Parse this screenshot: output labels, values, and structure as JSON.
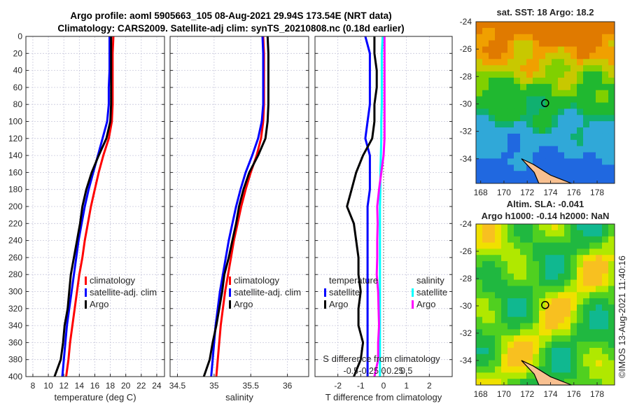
{
  "title": {
    "line1": "Argo profile: aoml 5905663_105 08-Aug-2021 29.94S 173.54E (NRT data)",
    "line2": "Climatology: CARS2009. Satellite-adj clim: synTS_20210808.nc (0.18d earlier)"
  },
  "watermark": "©IMOS 13-Aug-2021 11:40:16",
  "colors": {
    "climatology": "#ff0000",
    "satellite": "#0000ff",
    "argo": "#000000",
    "sal_satellite": "#00ffff",
    "sal_argo": "#ff00ff"
  },
  "chart_data": [
    {
      "type": "line",
      "id": "temp",
      "xlabel": "temperature (deg C)",
      "ylabel": "",
      "xlim": [
        7.1,
        25
      ],
      "ylim": [
        400,
        0
      ],
      "xticks": [
        "8",
        "10",
        "12",
        "14",
        "16",
        "18",
        "20",
        "22",
        "24"
      ],
      "xtickvals": [
        8,
        10,
        12,
        14,
        16,
        18,
        20,
        22,
        24
      ],
      "yticks": [
        0,
        20,
        40,
        60,
        80,
        100,
        120,
        140,
        160,
        180,
        200,
        220,
        240,
        260,
        280,
        300,
        320,
        340,
        360,
        380,
        400
      ],
      "depth": [
        0,
        20,
        40,
        60,
        80,
        100,
        120,
        140,
        160,
        180,
        200,
        220,
        240,
        260,
        280,
        300,
        320,
        340,
        360,
        380,
        400
      ],
      "legend": [
        "climatology",
        "satellite-adj. clim",
        "Argo"
      ],
      "series": [
        {
          "name": "climatology",
          "color": "climatology",
          "values": [
            18.4,
            18.3,
            18.3,
            18.3,
            18.3,
            18.2,
            17.8,
            17.1,
            16.5,
            16,
            15.5,
            15.1,
            14.7,
            14.4,
            14,
            13.7,
            13.4,
            13.1,
            12.8,
            12.6,
            12.3
          ]
        },
        {
          "name": "satellite-adj. clim",
          "color": "satellite",
          "values": [
            17.9,
            17.9,
            17.9,
            17.8,
            17.8,
            17.6,
            17,
            16.4,
            15.8,
            15.2,
            14.7,
            14.3,
            13.9,
            13.6,
            13.3,
            13,
            12.7,
            12.4,
            12.2,
            12,
            11.8
          ]
        },
        {
          "name": "Argo",
          "color": "argo",
          "values": [
            18.1,
            18.1,
            18.1,
            18.1,
            18.1,
            18,
            17.5,
            16.5,
            15.6,
            14.9,
            14.4,
            14.1,
            13.7,
            13.3,
            12.9,
            12.7,
            12.5,
            12.1,
            11.9,
            11.6,
            10.8
          ]
        }
      ]
    },
    {
      "type": "line",
      "id": "sal",
      "xlabel": "salinity",
      "ylabel": "",
      "xlim": [
        34.4,
        36.29
      ],
      "ylim": [
        400,
        0
      ],
      "xticks": [
        "34.5",
        "35",
        "35.5",
        "36"
      ],
      "xtickvals": [
        34.5,
        35,
        35.5,
        36
      ],
      "depth": [
        0,
        20,
        40,
        60,
        80,
        100,
        120,
        140,
        160,
        180,
        200,
        220,
        240,
        260,
        280,
        300,
        320,
        340,
        360,
        380,
        400
      ],
      "legend": [
        "climatology",
        "satellite-adj. clim",
        "Argo"
      ],
      "series": [
        {
          "name": "climatology",
          "color": "climatology",
          "values": [
            35.67,
            35.68,
            35.68,
            35.68,
            35.68,
            35.67,
            35.64,
            35.58,
            35.5,
            35.43,
            35.37,
            35.32,
            35.27,
            35.23,
            35.19,
            35.15,
            35.12,
            35.09,
            35.07,
            35.05,
            35.03
          ]
        },
        {
          "name": "satellite-adj. clim",
          "color": "satellite",
          "values": [
            35.66,
            35.67,
            35.67,
            35.67,
            35.67,
            35.65,
            35.6,
            35.52,
            35.43,
            35.36,
            35.3,
            35.25,
            35.2,
            35.16,
            35.12,
            35.08,
            35.05,
            35.02,
            35,
            34.98,
            34.96
          ]
        },
        {
          "name": "Argo",
          "color": "argo",
          "values": [
            35.73,
            35.74,
            35.74,
            35.74,
            35.74,
            35.73,
            35.7,
            35.6,
            35.48,
            35.4,
            35.34,
            35.3,
            35.25,
            35.2,
            35.14,
            35.11,
            35.07,
            35.03,
            34.98,
            34.94,
            34.86
          ]
        }
      ]
    },
    {
      "type": "line",
      "id": "diff",
      "xlabel": "T difference from climatology",
      "x2label": "S difference from climatology",
      "xlim": [
        -3,
        3
      ],
      "s_xlim": [
        -1.5,
        1.5
      ],
      "ylim": [
        400,
        0
      ],
      "xticks": [
        "-2",
        "-1",
        "0",
        "1",
        "2"
      ],
      "xtickvals": [
        -2,
        -1,
        0,
        1,
        2
      ],
      "s_xticks": [
        "-0.5",
        "-0.25",
        "0",
        "0.25",
        "0.5"
      ],
      "s_xtickvals": [
        -0.5,
        -0.25,
        0,
        0.25,
        0.5
      ],
      "depth": [
        0,
        20,
        40,
        60,
        80,
        100,
        120,
        140,
        160,
        180,
        200,
        220,
        240,
        260,
        280,
        300,
        320,
        340,
        360,
        380,
        400
      ],
      "legend_t": {
        "title": "temperature",
        "items": [
          "satellite",
          "Argo"
        ]
      },
      "legend_s": {
        "title": "salinity",
        "items": [
          "satellite",
          "Argo"
        ]
      },
      "series": [
        {
          "name": "T satellite",
          "axis": "t",
          "color": "satellite",
          "values": [
            -0.8,
            -0.6,
            -0.6,
            -0.6,
            -0.6,
            -0.7,
            -0.8,
            -0.6,
            -0.6,
            -0.6,
            -0.7,
            -0.7,
            -0.7,
            -0.7,
            -0.7,
            -0.7,
            -0.7,
            -0.7,
            -0.7,
            -0.7,
            -0.7
          ]
        },
        {
          "name": "T Argo",
          "axis": "t",
          "color": "argo",
          "values": [
            -0.4,
            -0.4,
            -0.3,
            -0.3,
            -0.4,
            -0.4,
            -0.5,
            -0.9,
            -1.2,
            -1.4,
            -1.6,
            -1.3,
            -1.2,
            -1.1,
            -1.1,
            -1.0,
            -1.1,
            -1.1,
            -0.9,
            -1.0,
            -1.3
          ]
        },
        {
          "name": "S satellite",
          "axis": "s",
          "color": "sal_satellite",
          "values": [
            -0.02,
            -0.04,
            -0.04,
            -0.04,
            -0.04,
            -0.05,
            -0.05,
            -0.06,
            -0.07,
            -0.07,
            -0.08,
            -0.08,
            -0.08,
            -0.08,
            -0.08,
            -0.08,
            -0.08,
            -0.08,
            -0.08,
            -0.08,
            -0.08
          ]
        },
        {
          "name": "S Argo",
          "axis": "s",
          "color": "sal_argo",
          "values": [
            0.02,
            0.02,
            0.02,
            0.02,
            0.02,
            0.02,
            0.02,
            0.0,
            -0.05,
            -0.1,
            -0.14,
            -0.13,
            -0.14,
            -0.14,
            -0.15,
            -0.12,
            -0.11,
            -0.1,
            -0.12,
            -0.12,
            -0.2
          ]
        }
      ]
    },
    {
      "type": "heatmap",
      "id": "sst",
      "title": "sat. SST: 18 Argo: 18.2",
      "xlim": [
        167.6,
        179.5
      ],
      "ylim": [
        -35.8,
        -24
      ],
      "xticks": [
        "168",
        "170",
        "172",
        "174",
        "176",
        "178"
      ],
      "xtickvals": [
        168,
        170,
        172,
        174,
        176,
        178
      ],
      "yticks": [
        "-24",
        "-26",
        "-28",
        "-30",
        "-32",
        "-34"
      ],
      "ytickvals": [
        -24,
        -26,
        -28,
        -30,
        -32,
        -34
      ],
      "marker": [
        173.54,
        -29.94
      ]
    },
    {
      "type": "heatmap",
      "id": "sla",
      "title": "Altim. SLA: -0.041",
      "subtitle": "Argo h1000: -0.14 h2000: NaN",
      "xlim": [
        167.6,
        179.5
      ],
      "ylim": [
        -35.8,
        -24
      ],
      "xticks": [
        "168",
        "170",
        "172",
        "174",
        "176",
        "178"
      ],
      "xtickvals": [
        168,
        170,
        172,
        174,
        176,
        178
      ],
      "yticks": [
        "-24",
        "-26",
        "-28",
        "-30",
        "-32",
        "-34"
      ],
      "ytickvals": [
        -24,
        -26,
        -28,
        -30,
        -32,
        -34
      ],
      "marker": [
        173.54,
        -29.94
      ]
    }
  ]
}
